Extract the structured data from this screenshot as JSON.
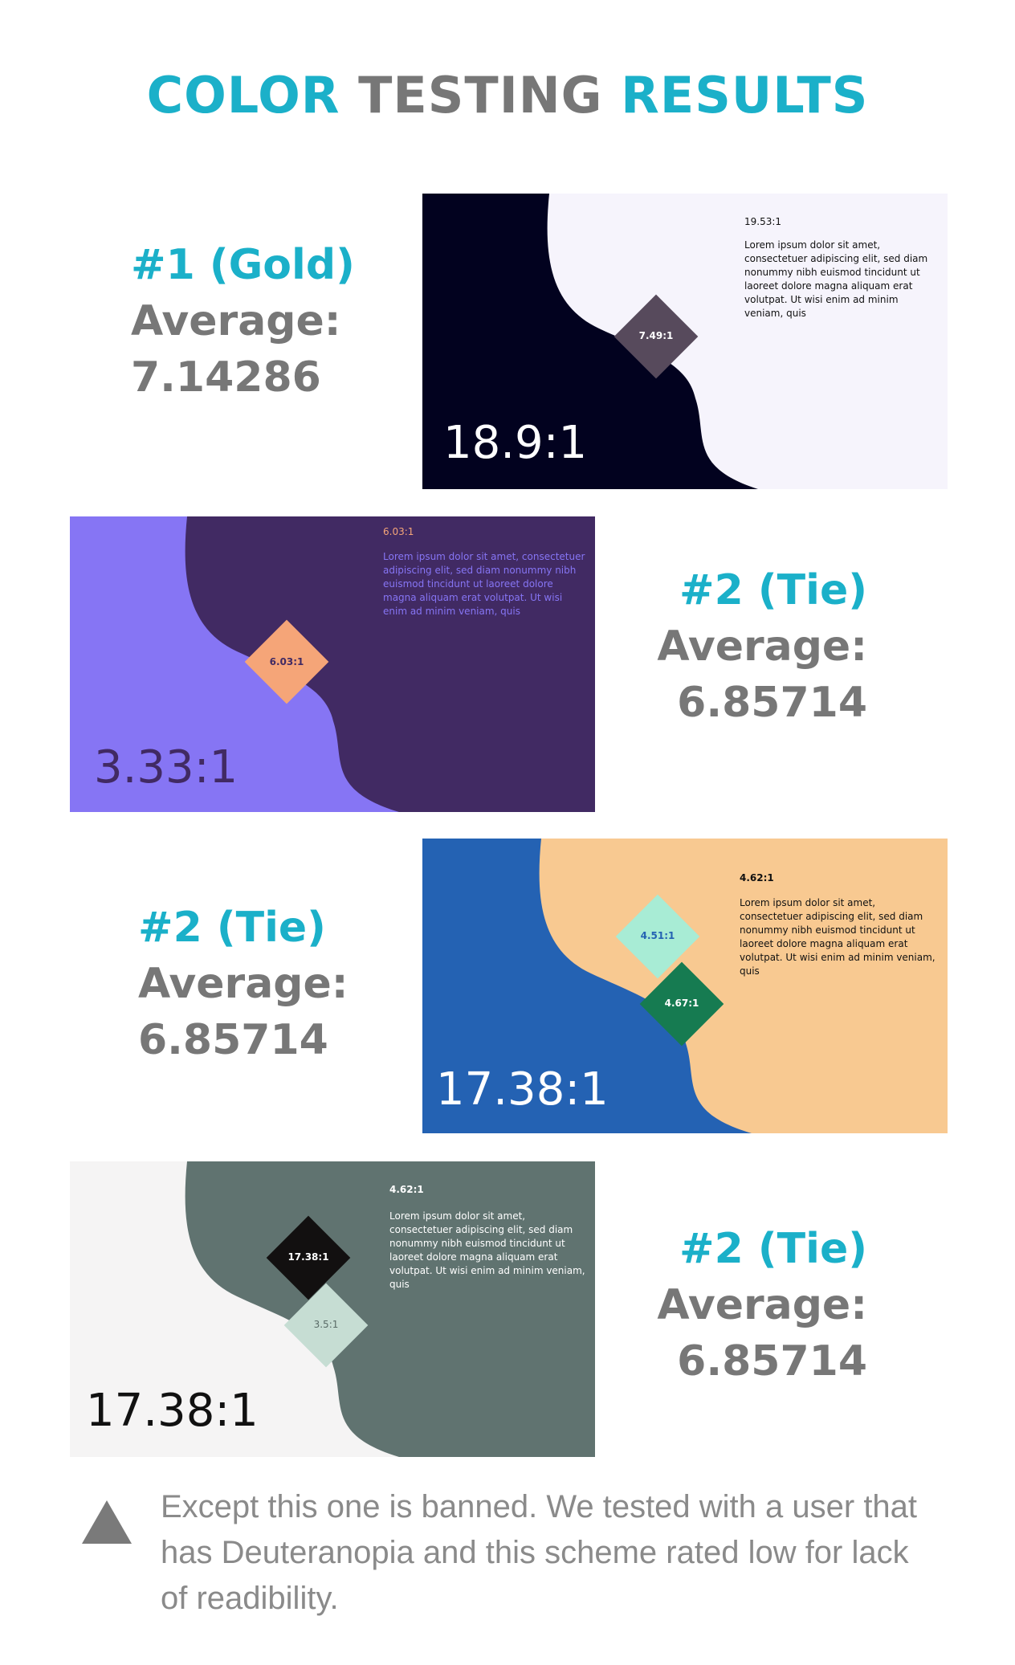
{
  "title": {
    "part1": "COLOR",
    "part2": "TESTING",
    "part3": "RESULTS"
  },
  "cards": [
    {
      "rank": "#1 (Gold)",
      "avg_label": "Average:",
      "avg_value": "7.14286",
      "corner_ratio": "19.53:1",
      "body": "Lorem ipsum dolor sit amet, consectetuer adipiscing elit, sed diam nonummy nibh euismod tincidunt ut laoreet dolore magna aliquam erat volutpat. Ut wisi enim ad minim veniam, quis",
      "diamond1": "7.49:1",
      "big_ratio": "18.9:1",
      "colors": {
        "left": "#02021f",
        "right": "#f6f4fc",
        "diamond1": "#574a5c",
        "text": "#111111",
        "big": "#ffffff"
      }
    },
    {
      "rank": "#2 (Tie)",
      "avg_label": "Average:",
      "avg_value": "6.85714",
      "corner_ratio": "6.03:1",
      "body": "Lorem ipsum dolor sit amet, consectetuer adipiscing elit, sed diam nonummy nibh euismod tincidunt ut laoreet dolore magna aliquam erat volutpat. Ut wisi enim ad minim veniam, quis",
      "diamond1": "6.03:1",
      "big_ratio": "3.33:1",
      "colors": {
        "left": "#8675f4",
        "right": "#412a63",
        "diamond1": "#f5a578",
        "text": "#8675f4",
        "big": "#412a63"
      }
    },
    {
      "rank": "#2 (Tie)",
      "avg_label": "Average:",
      "avg_value": "6.85714",
      "corner_ratio": "4.62:1",
      "body": "Lorem ipsum dolor sit amet, consectetuer adipiscing elit, sed diam nonummy nibh euismod tincidunt ut laoreet dolore magna aliquam erat volutpat. Ut wisi enim ad minim veniam, quis",
      "diamond1": "4.51:1",
      "diamond2": "4.67:1",
      "big_ratio": "17.38:1",
      "colors": {
        "left": "#2462b3",
        "right": "#f8c991",
        "diamond1": "#a8ecd5",
        "diamond2": "#167b51",
        "text": "#111111",
        "big": "#ffffff"
      }
    },
    {
      "rank": "#2 (Tie)",
      "avg_label": "Average:",
      "avg_value": "6.85714",
      "corner_ratio": "4.62:1",
      "body": "Lorem ipsum dolor sit amet, consectetuer adipiscing elit, sed diam nonummy nibh euismod tincidunt ut laoreet dolore magna aliquam erat volutpat. Ut wisi enim ad minim veniam, quis",
      "diamond1": "17.38:1",
      "diamond2": "3.5:1",
      "big_ratio": "17.38:1",
      "colors": {
        "left": "#f5f4f4",
        "right": "#607370",
        "diamond1": "#121010",
        "diamond2": "#c6ddd3",
        "text": "#ffffff",
        "big": "#111111"
      }
    }
  ],
  "note": {
    "icon": "triangle-icon",
    "text": "Except this one is banned. We tested with a user that has Deuteranopia and this scheme rated low for lack of readibility."
  }
}
